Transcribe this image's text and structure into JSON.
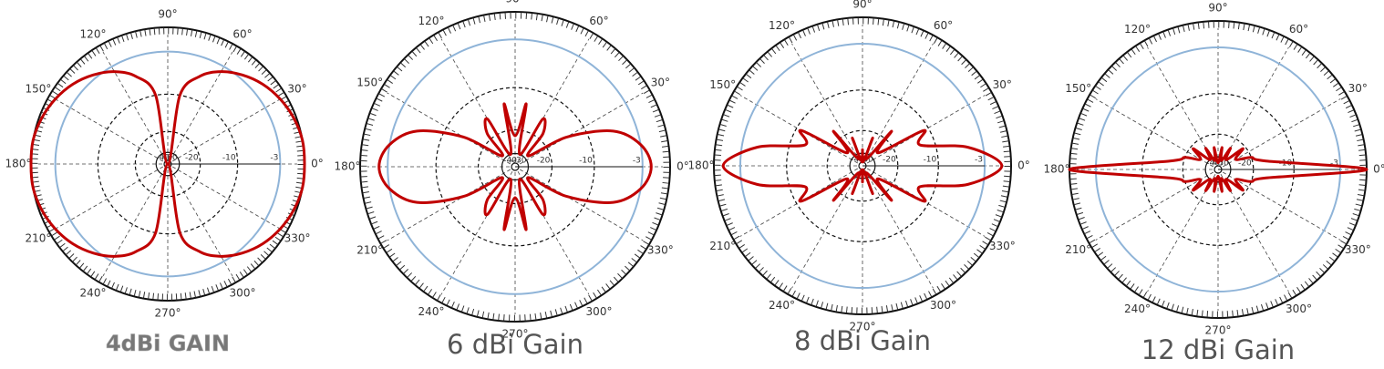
{
  "chart_data": [
    {
      "type": "polar",
      "caption": "4dBi GAIN",
      "color": "#c00000",
      "radial_scale": "arrl",
      "rlim": [
        -40,
        0
      ],
      "rticks": [
        -40,
        -30,
        -20,
        -10,
        -3
      ],
      "thetaticks": [
        {
          "value": 0,
          "label": "0°"
        },
        {
          "value": 30,
          "label": "30°"
        },
        {
          "value": 60,
          "label": "60°"
        },
        {
          "value": 90,
          "label": "90°"
        },
        {
          "value": 120,
          "label": "120°"
        },
        {
          "value": 150,
          "label": "150°"
        },
        {
          "value": 180,
          "label": "180°"
        },
        {
          "value": 210,
          "label": "210°"
        },
        {
          "value": 240,
          "label": "240°"
        },
        {
          "value": 270,
          "label": "270°"
        },
        {
          "value": 300,
          "label": "300°"
        },
        {
          "value": 330,
          "label": "330°"
        }
      ],
      "theta": [
        0,
        10,
        20,
        30,
        40,
        50,
        60,
        70,
        80,
        90,
        100,
        110,
        120,
        130,
        140,
        150,
        160,
        170,
        180,
        190,
        200,
        210,
        220,
        230,
        240,
        250,
        260,
        270,
        280,
        290,
        300,
        310,
        320,
        330,
        340,
        350
      ],
      "values": [
        0,
        0,
        -0.3,
        -0.8,
        -1.5,
        -2.5,
        -3.8,
        -5.8,
        -10,
        -40,
        -10,
        -5.8,
        -3.8,
        -2.5,
        -1.5,
        -0.8,
        -0.3,
        0,
        0,
        0,
        -0.3,
        -0.8,
        -1.5,
        -2.5,
        -3.8,
        -5.8,
        -10,
        -40,
        -10,
        -5.8,
        -3.8,
        -2.5,
        -1.5,
        -0.8,
        -0.3,
        0
      ]
    },
    {
      "type": "polar",
      "caption": "6 dBi Gain",
      "color": "#c00000",
      "radial_scale": "arrl",
      "rlim": [
        -40,
        0
      ],
      "rticks": [
        -40,
        -30,
        -20,
        -10,
        -3
      ],
      "thetaticks": [
        {
          "value": 0,
          "label": "0°"
        },
        {
          "value": 30,
          "label": "30°"
        },
        {
          "value": 60,
          "label": "60°"
        },
        {
          "value": 90,
          "label": "90°"
        },
        {
          "value": 120,
          "label": "120°"
        },
        {
          "value": 150,
          "label": "150°"
        },
        {
          "value": 180,
          "label": "180°"
        },
        {
          "value": 210,
          "label": "210°"
        },
        {
          "value": 240,
          "label": "240°"
        },
        {
          "value": 270,
          "label": "270°"
        },
        {
          "value": 300,
          "label": "300°"
        },
        {
          "value": 330,
          "label": "330°"
        }
      ],
      "theta": [
        0,
        10,
        20,
        30,
        40,
        50,
        60,
        70,
        80,
        90,
        100,
        110,
        120,
        130,
        140,
        150,
        160,
        170,
        180,
        190,
        200,
        210,
        220,
        230,
        240,
        250,
        260,
        270,
        280,
        290,
        300,
        310,
        320,
        330,
        340,
        350
      ],
      "values": [
        -2,
        -3,
        -6,
        -14,
        -28,
        -18,
        -15,
        -30,
        -13,
        -22,
        -13,
        -30,
        -15,
        -18,
        -28,
        -14,
        -6,
        -3,
        -2,
        -3,
        -6,
        -14,
        -28,
        -18,
        -15,
        -30,
        -13,
        -22,
        -13,
        -30,
        -15,
        -18,
        -28,
        -14,
        -6,
        -3
      ]
    },
    {
      "type": "polar",
      "caption": "8 dBi Gain",
      "color": "#c00000",
      "radial_scale": "arrl",
      "rlim": [
        -40,
        0
      ],
      "rticks": [
        -40,
        -30,
        -20,
        -10,
        -3
      ],
      "thetaticks": [
        {
          "value": 0,
          "label": "0°"
        },
        {
          "value": 30,
          "label": "30°"
        },
        {
          "value": 60,
          "label": "60°"
        },
        {
          "value": 90,
          "label": "90°"
        },
        {
          "value": 120,
          "label": "120°"
        },
        {
          "value": 150,
          "label": "150°"
        },
        {
          "value": 180,
          "label": "180°"
        },
        {
          "value": 210,
          "label": "210°"
        },
        {
          "value": 240,
          "label": "240°"
        },
        {
          "value": 270,
          "label": "270°"
        },
        {
          "value": 300,
          "label": "300°"
        },
        {
          "value": 330,
          "label": "330°"
        }
      ],
      "theta": [
        0,
        10,
        20,
        30,
        40,
        50,
        60,
        70,
        80,
        90,
        100,
        110,
        120,
        130,
        140,
        150,
        160,
        170,
        180,
        190,
        200,
        210,
        220,
        230,
        240,
        250,
        260,
        270,
        280,
        290,
        300,
        310,
        320,
        330,
        340,
        350
      ],
      "values": [
        -1,
        -5,
        -13,
        -11,
        -26,
        -17,
        -33,
        -22,
        -36,
        -28,
        -36,
        -22,
        -33,
        -17,
        -26,
        -11,
        -13,
        -5,
        -1,
        -5,
        -13,
        -11,
        -26,
        -17,
        -33,
        -22,
        -36,
        -28,
        -36,
        -22,
        -33,
        -17,
        -26,
        -11,
        -13,
        -5
      ]
    },
    {
      "type": "polar",
      "caption": "12 dBi Gain",
      "color": "#c00000",
      "radial_scale": "arrl",
      "rlim": [
        -40,
        0
      ],
      "rticks": [
        -40,
        -30,
        -20,
        -10,
        -3
      ],
      "thetaticks": [
        {
          "value": 0,
          "label": "0°"
        },
        {
          "value": 30,
          "label": "30°"
        },
        {
          "value": 60,
          "label": "60°"
        },
        {
          "value": 90,
          "label": "90°"
        },
        {
          "value": 120,
          "label": "120°"
        },
        {
          "value": 150,
          "label": "150°"
        },
        {
          "value": 180,
          "label": "180°"
        },
        {
          "value": 210,
          "label": "210°"
        },
        {
          "value": 240,
          "label": "240°"
        },
        {
          "value": 270,
          "label": "270°"
        },
        {
          "value": 300,
          "label": "300°"
        },
        {
          "value": 330,
          "label": "330°"
        }
      ],
      "theta": [
        0,
        10,
        20,
        30,
        40,
        50,
        60,
        70,
        80,
        90,
        100,
        110,
        120,
        130,
        140,
        150,
        160,
        170,
        180,
        190,
        200,
        210,
        220,
        230,
        240,
        250,
        260,
        270,
        280,
        290,
        300,
        310,
        320,
        330,
        340,
        350
      ],
      "values": [
        0,
        -16,
        -20,
        -26,
        -21,
        -30,
        -24,
        -32,
        -25,
        -34,
        -25,
        -32,
        -24,
        -30,
        -21,
        -26,
        -20,
        -16,
        0,
        -16,
        -20,
        -26,
        -21,
        -30,
        -24,
        -32,
        -25,
        -34,
        -25,
        -32,
        -24,
        -30,
        -21,
        -26,
        -20,
        -16
      ]
    }
  ]
}
